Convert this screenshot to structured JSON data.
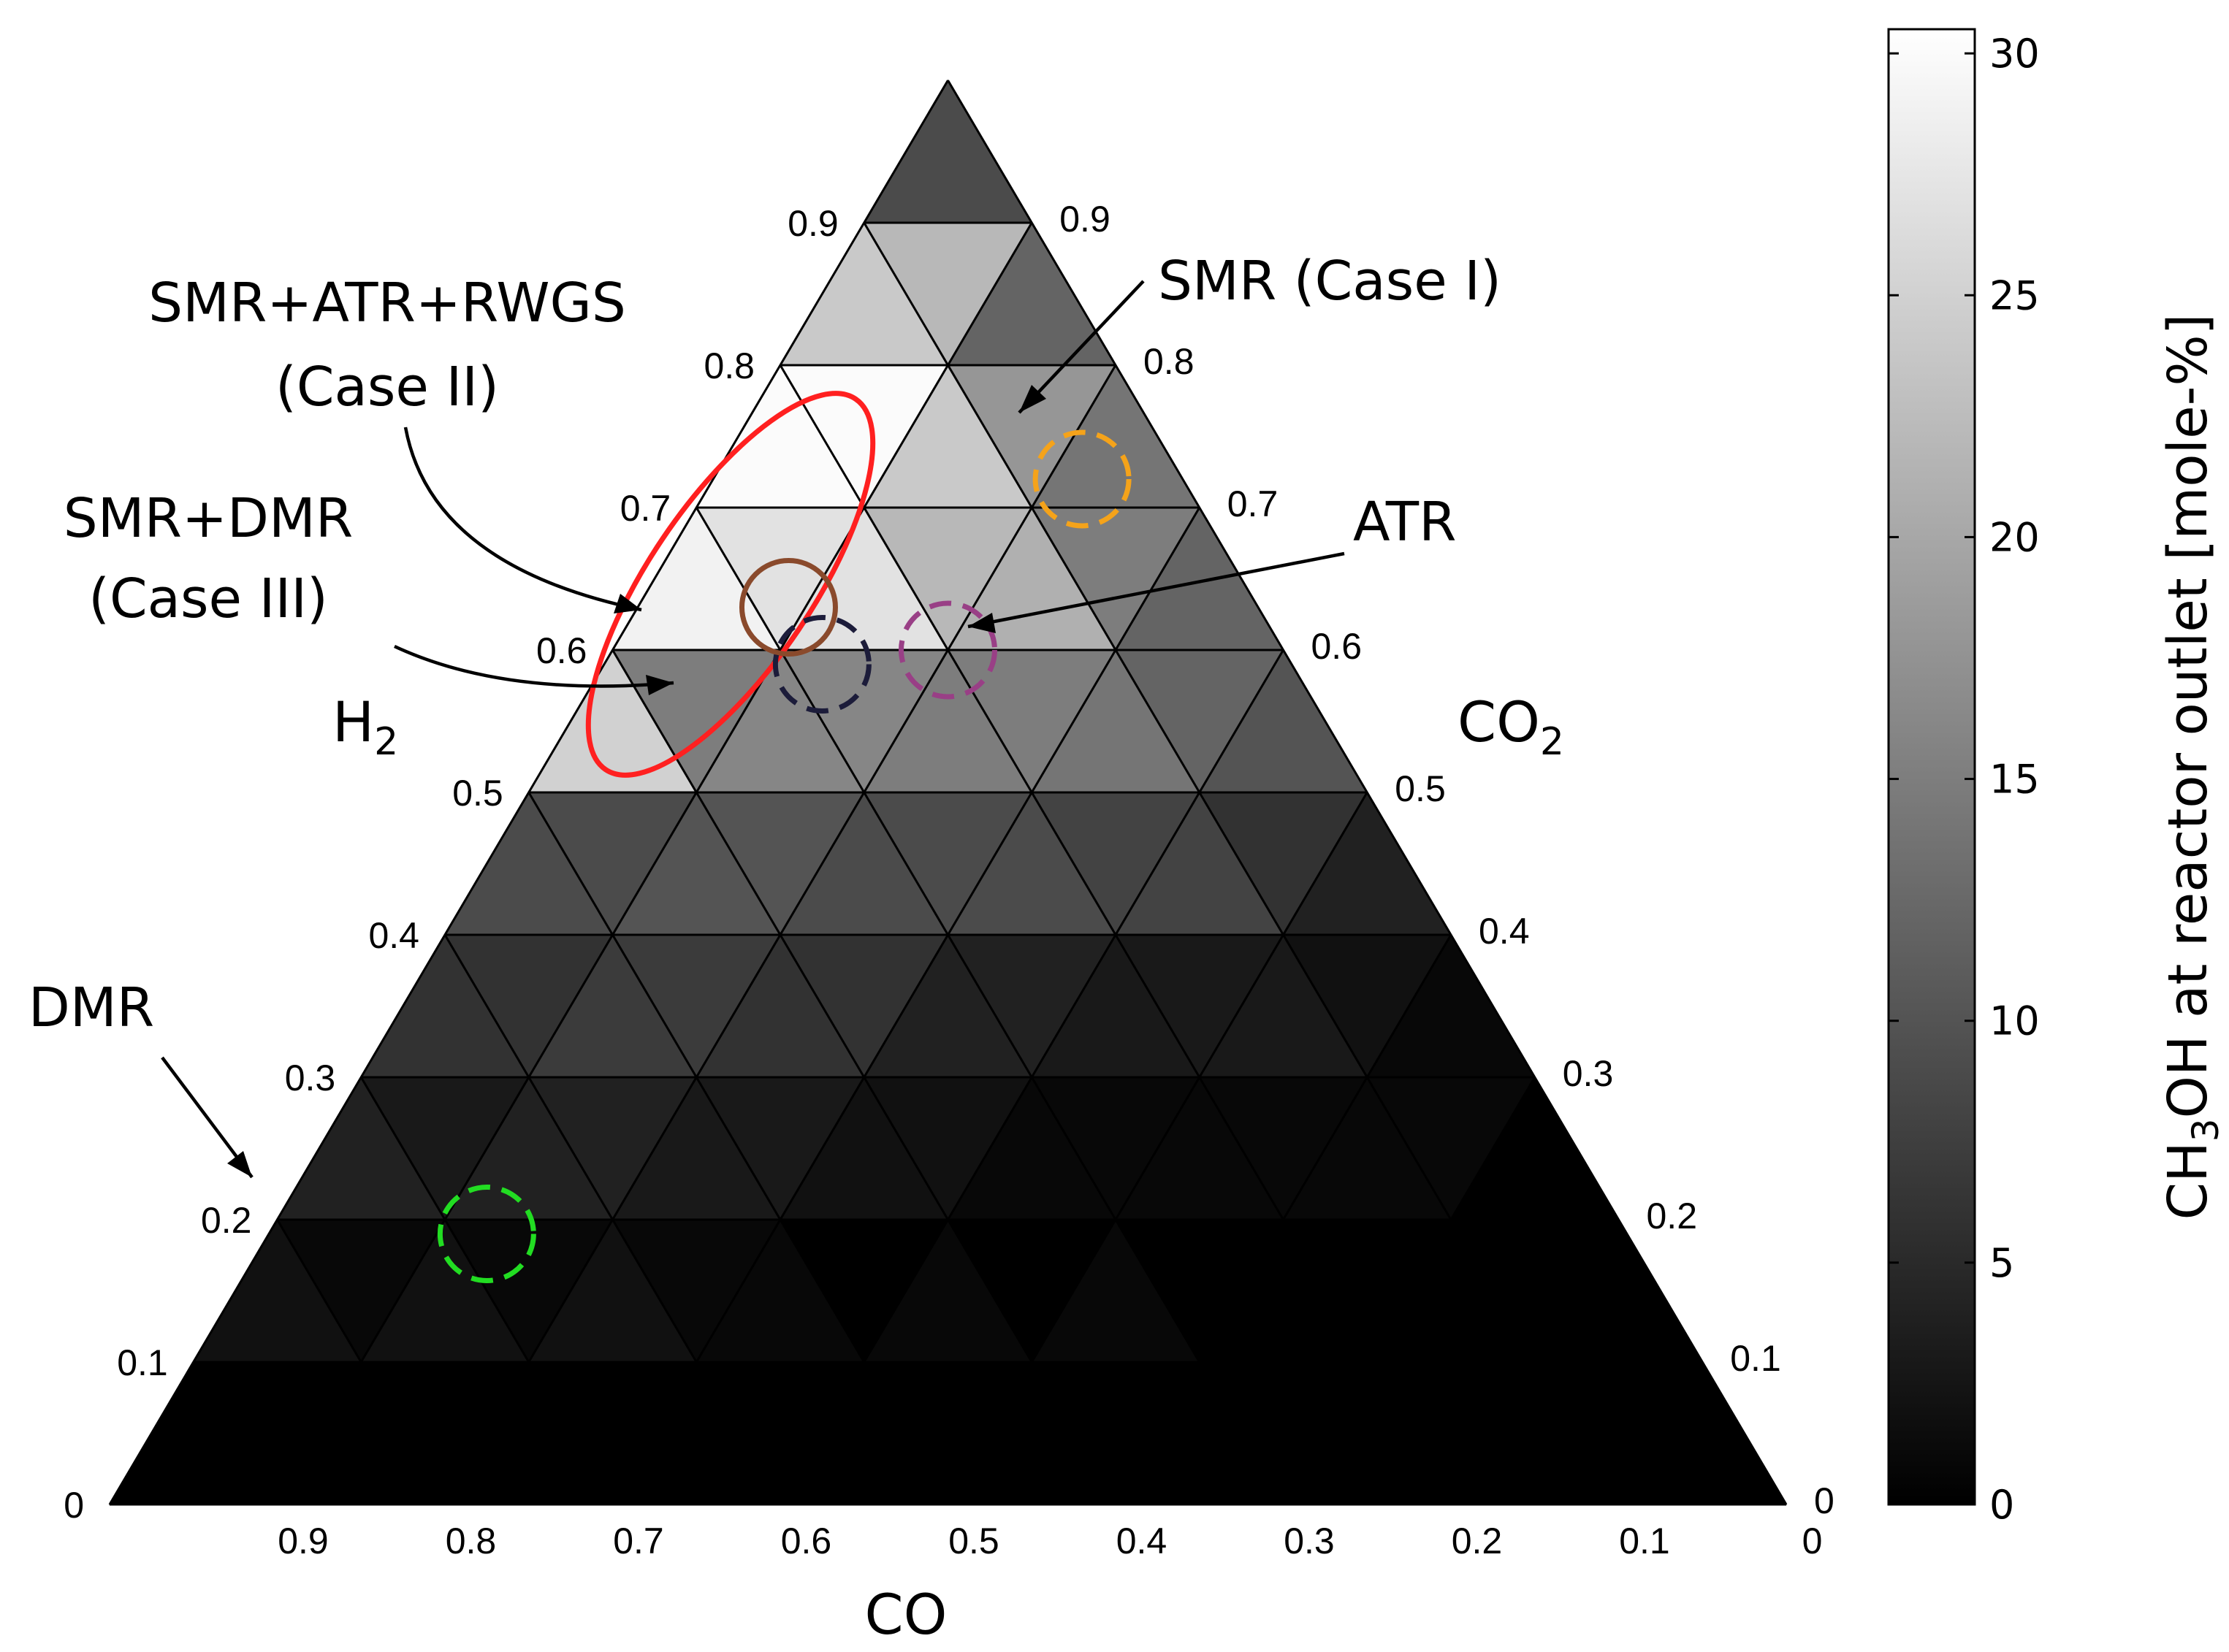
{
  "chart_data": {
    "type": "ternary-heatmap",
    "grid_divisions": 10,
    "cell_value_order": "row r = 0..9 (bottom to top), cells left to right alternating up/down triangles",
    "cells": [
      [
        0,
        0,
        0,
        0,
        0,
        0,
        0,
        0,
        0,
        0,
        0,
        0,
        0,
        0,
        0,
        0,
        0,
        0,
        0
      ],
      [
        2,
        1,
        2,
        1,
        2,
        1,
        1,
        0,
        1,
        0,
        1,
        0,
        0,
        0,
        0,
        0,
        0
      ],
      [
        4,
        3,
        4,
        4,
        3,
        3,
        2,
        2,
        1,
        1,
        1,
        1,
        1,
        1,
        0
      ],
      [
        6,
        6,
        7,
        7,
        6,
        6,
        4,
        4,
        3,
        3,
        3,
        2,
        1
      ],
      [
        9,
        9,
        10,
        10,
        9,
        9,
        9,
        8,
        8,
        6,
        4
      ],
      [
        25,
        15,
        16,
        16,
        15,
        15,
        14,
        12,
        10
      ],
      [
        29,
        27,
        27,
        22,
        21,
        15,
        12
      ],
      [
        30,
        30,
        24,
        18,
        14
      ],
      [
        24,
        22,
        12
      ],
      [
        9
      ]
    ],
    "axes": {
      "bottom": {
        "label": "CO",
        "ticks": [
          "0.9",
          "0.8",
          "0.7",
          "0.6",
          "0.5",
          "0.4",
          "0.3",
          "0.2",
          "0.1",
          "0"
        ]
      },
      "left": {
        "label": "H",
        "label_sub": "2",
        "ticks": [
          "0",
          "0.1",
          "0.2",
          "0.3",
          "0.4",
          "0.5",
          "0.6",
          "0.7",
          "0.8",
          "0.9"
        ]
      },
      "right": {
        "label": "CO",
        "label_sub": "2",
        "ticks": [
          "0",
          "0.1",
          "0.2",
          "0.3",
          "0.4",
          "0.5",
          "0.6",
          "0.7",
          "0.8",
          "0.9"
        ]
      }
    },
    "colorbar": {
      "label_parts": [
        "CH",
        "3",
        "OH at reactor outlet [mole-%]"
      ],
      "range": [
        0,
        30.5
      ],
      "ticks": [
        0,
        5,
        10,
        15,
        20,
        25,
        30
      ],
      "colormap": "gray (black = 0, white = max)"
    },
    "annotations": [
      {
        "label": "SMR (Case I)",
        "h2": 0.72,
        "co": 0.06,
        "marker": "dashed-circle",
        "color": "#f5a31a"
      },
      {
        "label": "ATR",
        "h2": 0.6,
        "co": 0.2,
        "marker": "dashed-circle",
        "color": "#993f86"
      },
      {
        "label_lines": [
          "SMR+ATR+RWGS",
          "(Case II)"
        ],
        "h2": 0.63,
        "co": 0.28,
        "marker": "solid-circle",
        "color": "#8a4a2c"
      },
      {
        "label_lines": [
          "SMR+DMR",
          "(Case III)"
        ],
        "h2": 0.59,
        "co": 0.28,
        "marker": "dashed-circle",
        "color": "#1c1c3a"
      },
      {
        "label": "DMR",
        "h2": 0.19,
        "co": 0.68,
        "marker": "dashed-circle",
        "color": "#22dd22"
      }
    ],
    "highlight_region": {
      "shape": "ellipse",
      "color": "#ff2020",
      "description": "high-methanol region around H2 0.5–0.8"
    }
  }
}
